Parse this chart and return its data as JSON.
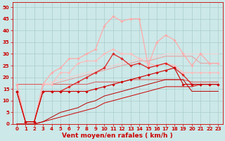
{
  "background_color": "#cce8e8",
  "grid_color": "#aacccc",
  "xlabel": "Vent moyen/en rafales ( km/h )",
  "tick_color": "#cc0000",
  "ylim": [
    0,
    52
  ],
  "xlim": [
    -0.5,
    23.5
  ],
  "yticks": [
    0,
    5,
    10,
    15,
    20,
    25,
    30,
    35,
    40,
    45,
    50
  ],
  "xticks": [
    0,
    1,
    2,
    3,
    4,
    5,
    6,
    7,
    8,
    9,
    10,
    11,
    12,
    13,
    14,
    15,
    16,
    17,
    18,
    19,
    20,
    21,
    22,
    23
  ],
  "series": [
    {
      "x": [
        0,
        1,
        2,
        3,
        4,
        5,
        6,
        7,
        8,
        9,
        10,
        11,
        12,
        13,
        14,
        15,
        16,
        17,
        18,
        19,
        20,
        21,
        22,
        23
      ],
      "y": [
        14,
        1,
        1,
        14,
        14,
        14,
        14,
        14,
        14,
        15,
        16,
        17,
        18,
        19,
        20,
        21,
        22,
        23,
        24,
        17,
        17,
        17,
        17,
        17
      ],
      "color": "#cc0000",
      "lw": 0.8,
      "marker": "D",
      "ms": 1.8,
      "zorder": 6
    },
    {
      "x": [
        0,
        1,
        2,
        3,
        4,
        5,
        6,
        7,
        8,
        9,
        10,
        11,
        12,
        13,
        14,
        15,
        16,
        17,
        18,
        19,
        20,
        21,
        22,
        23
      ],
      "y": [
        17,
        1,
        1,
        17,
        22,
        24,
        28,
        28,
        30,
        32,
        42,
        46,
        44,
        45,
        45,
        25,
        35,
        38,
        36,
        30,
        25,
        30,
        26,
        26
      ],
      "color": "#ffaaaa",
      "lw": 0.9,
      "marker": "D",
      "ms": 1.8,
      "zorder": 4
    },
    {
      "x": [
        0,
        1,
        2,
        3,
        4,
        5,
        6,
        7,
        8,
        9,
        10,
        11,
        12,
        13,
        14,
        15,
        16,
        17,
        18,
        19,
        20,
        21,
        22,
        23
      ],
      "y": [
        17,
        1,
        1,
        17,
        17,
        22,
        22,
        26,
        27,
        27,
        30,
        32,
        30,
        30,
        28,
        26,
        25,
        26,
        25,
        22,
        22,
        22,
        22,
        22
      ],
      "color": "#ffbbbb",
      "lw": 0.9,
      "marker": "D",
      "ms": 1.8,
      "zorder": 3
    },
    {
      "x": [
        0,
        1,
        2,
        3,
        4,
        5,
        6,
        7,
        8,
        9,
        10,
        11,
        12,
        13,
        14,
        15,
        16,
        17,
        18,
        19,
        20,
        21,
        22,
        23
      ],
      "y": [
        14,
        1,
        1,
        14,
        14,
        14,
        16,
        18,
        20,
        22,
        24,
        30,
        28,
        25,
        26,
        24,
        25,
        26,
        24,
        21,
        17,
        17,
        17,
        17
      ],
      "color": "#dd2222",
      "lw": 0.9,
      "marker": "D",
      "ms": 1.8,
      "zorder": 5
    },
    {
      "x": [
        0,
        1,
        2,
        3,
        4,
        5,
        6,
        7,
        8,
        9,
        10,
        11,
        12,
        13,
        14,
        15,
        16,
        17,
        18,
        19,
        20,
        21,
        22,
        23
      ],
      "y": [
        0,
        0,
        0,
        1,
        2,
        3,
        4,
        5,
        6,
        7,
        9,
        10,
        11,
        12,
        13,
        14,
        15,
        16,
        16,
        16,
        16,
        17,
        17,
        17
      ],
      "color": "#cc0000",
      "lw": 0.7,
      "marker": null,
      "ms": 0,
      "zorder": 2
    },
    {
      "x": [
        0,
        1,
        2,
        3,
        4,
        5,
        6,
        7,
        8,
        9,
        10,
        11,
        12,
        13,
        14,
        15,
        16,
        17,
        18,
        19,
        20,
        21,
        22,
        23
      ],
      "y": [
        0,
        0,
        0,
        1,
        3,
        5,
        6,
        7,
        9,
        10,
        12,
        13,
        14,
        15,
        16,
        17,
        18,
        19,
        19,
        19,
        14,
        14,
        14,
        14
      ],
      "color": "#bb0000",
      "lw": 0.7,
      "marker": null,
      "ms": 0,
      "zorder": 2
    },
    {
      "x": [
        0,
        1,
        2,
        3,
        4,
        5,
        6,
        7,
        8,
        9,
        10,
        11,
        12,
        13,
        14,
        15,
        16,
        17,
        18,
        19,
        20,
        21,
        22,
        23
      ],
      "y": [
        17,
        17,
        17,
        17,
        18,
        19,
        20,
        21,
        22,
        23,
        24,
        25,
        26,
        27,
        28,
        28,
        29,
        30,
        30,
        30,
        30,
        30,
        30,
        30
      ],
      "color": "#ffcccc",
      "lw": 0.7,
      "marker": null,
      "ms": 0,
      "zorder": 1
    },
    {
      "x": [
        0,
        1,
        2,
        3,
        4,
        5,
        6,
        7,
        8,
        9,
        10,
        11,
        12,
        13,
        14,
        15,
        16,
        17,
        18,
        19,
        20,
        21,
        22,
        23
      ],
      "y": [
        17,
        17,
        17,
        17,
        17,
        18,
        19,
        20,
        21,
        22,
        23,
        24,
        25,
        26,
        27,
        27,
        28,
        29,
        29,
        29,
        29,
        26,
        26,
        26
      ],
      "color": "#ee9999",
      "lw": 0.7,
      "marker": null,
      "ms": 0,
      "zorder": 1
    },
    {
      "x": [
        0,
        1,
        2,
        3,
        4,
        5,
        6,
        7,
        8,
        9,
        10,
        11,
        12,
        13,
        14,
        15,
        16,
        17,
        18,
        19,
        20,
        21,
        22,
        23
      ],
      "y": [
        17,
        17,
        17,
        17,
        17,
        17,
        17,
        17,
        17,
        18,
        18,
        18,
        18,
        19,
        19,
        19,
        19,
        19,
        19,
        19,
        18,
        18,
        18,
        18
      ],
      "color": "#dd5555",
      "lw": 0.7,
      "marker": null,
      "ms": 0,
      "zorder": 1
    }
  ],
  "tick_fontsize": 5,
  "label_fontsize": 6.5
}
